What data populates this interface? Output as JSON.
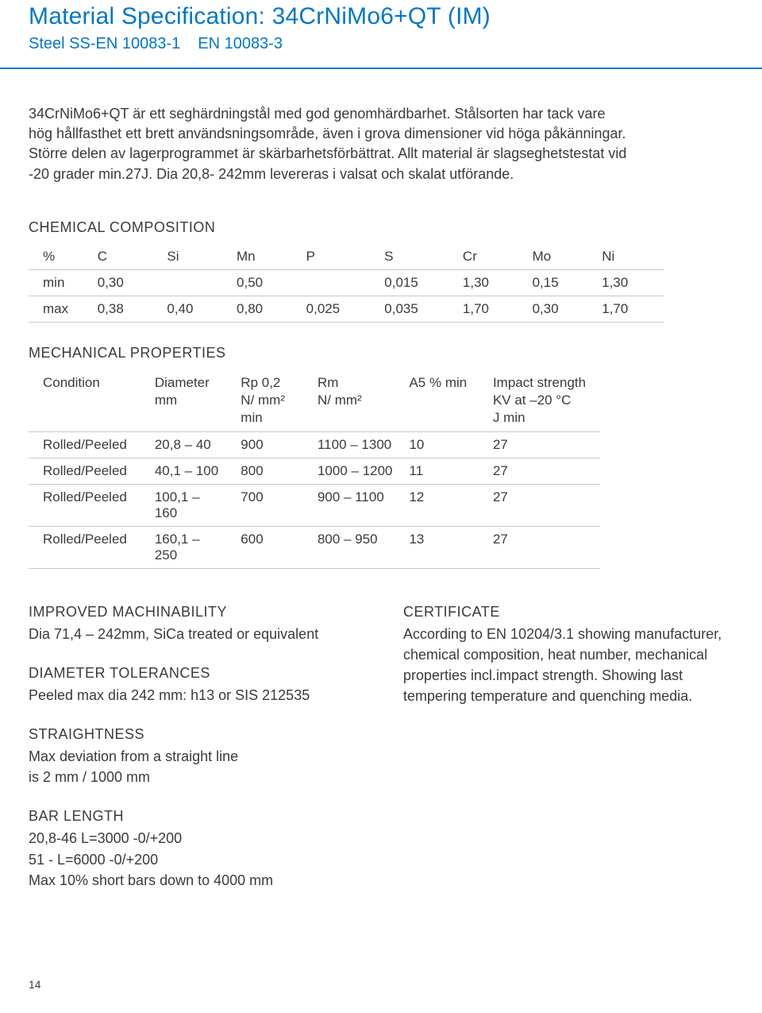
{
  "header": {
    "title": "Material Specification: 34CrNiMo6+QT (IM)",
    "subtitle_a": "Steel SS-EN 10083-1",
    "subtitle_b": "EN 10083-3"
  },
  "intro": "34CrNiMo6+QT är ett seghärdningstål med god genomhärdbarhet. Stålsorten har tack vare hög hållfasthet ett brett användsningsområde, även i grova dimensioner vid höga påkänningar. Större delen av lagerprogrammet är skärbarhetsförbättrat. Allt material är slagseghetstestat vid -20 grader min.27J. Dia 20,8- 242mm levereras i valsat och skalat utförande.",
  "chem": {
    "heading": "CHEMICAL COMPOSITION",
    "columns": [
      "%",
      "C",
      "Si",
      "Mn",
      "P",
      "S",
      "Cr",
      "Mo",
      "Ni"
    ],
    "rows": [
      [
        "min",
        "0,30",
        "",
        "0,50",
        "",
        "0,015",
        "1,30",
        "0,15",
        "1,30"
      ],
      [
        "max",
        "0,38",
        "0,40",
        "0,80",
        "0,025",
        "0,035",
        "1,70",
        "0,30",
        "1,70"
      ]
    ],
    "col_widths": [
      "70px",
      "80px",
      "80px",
      "80px",
      "90px",
      "90px",
      "80px",
      "80px",
      "80px"
    ]
  },
  "mech": {
    "heading": "MECHANICAL PROPERTIES",
    "columns": [
      "Condition",
      "Diameter\nmm",
      "Rp 0,2\nN/ mm²\nmin",
      "Rm\nN/ mm²",
      "A5 % min",
      "Impact strength\nKV at –20 °C\nJ min"
    ],
    "rows": [
      [
        "Rolled/Peeled",
        "20,8 – 40",
        "900",
        "1100 – 1300",
        "10",
        "27"
      ],
      [
        "Rolled/Peeled",
        "40,1 – 100",
        "800",
        "1000 – 1200",
        "11",
        "27"
      ],
      [
        "Rolled/Peeled",
        "100,1 – 160",
        "700",
        "900 – 1100",
        "12",
        "27"
      ],
      [
        "Rolled/Peeled",
        "160,1 – 250",
        "600",
        "800 – 950",
        "13",
        "27"
      ]
    ],
    "col_widths": [
      "150px",
      "110px",
      "100px",
      "120px",
      "110px",
      "150px"
    ]
  },
  "left_blocks": [
    {
      "heading": "IMPROVED MACHINABILITY",
      "body": "Dia 71,4 – 242mm, SiCa treated or equivalent"
    },
    {
      "heading": "DIAMETER TOLERANCES",
      "body": "Peeled max dia 242 mm:  h13 or SIS 212535"
    },
    {
      "heading": "STRAIGHTNESS",
      "body": "Max deviation from a straight line\nis 2 mm / 1000 mm"
    },
    {
      "heading": "BAR LENGTH",
      "body": "20,8-46 L=3000 -0/+200\n51 - L=6000 -0/+200\nMax 10% short bars down to 4000 mm"
    }
  ],
  "right_blocks": [
    {
      "heading": "CERTIFICATE",
      "body": "According to EN 10204/3.1 showing manufacturer, chemical composition, heat number, mechanical properties incl.impact strength. Showing last tempering temperature and quenching media."
    }
  ],
  "page_number": "14",
  "colors": {
    "accent": "#0077c8",
    "text": "#3a3a3a",
    "rule": "#c8c8c8",
    "background": "#ffffff"
  }
}
